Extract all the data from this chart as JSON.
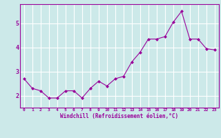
{
  "x": [
    0,
    1,
    2,
    3,
    4,
    5,
    6,
    7,
    8,
    9,
    10,
    11,
    12,
    13,
    14,
    15,
    16,
    17,
    18,
    19,
    20,
    21,
    22,
    23
  ],
  "y": [
    2.7,
    2.3,
    2.2,
    1.9,
    1.9,
    2.2,
    2.2,
    1.9,
    2.3,
    2.6,
    2.4,
    2.7,
    2.8,
    3.4,
    3.8,
    4.35,
    4.35,
    4.45,
    5.05,
    5.5,
    4.35,
    4.35,
    3.95,
    3.9
  ],
  "line_color": "#990099",
  "marker": "D",
  "marker_size": 2,
  "xlabel": "Windchill (Refroidissement éolien,°C)",
  "xlim": [
    -0.5,
    23.5
  ],
  "ylim": [
    1.5,
    5.8
  ],
  "yticks": [
    2,
    3,
    4,
    5
  ],
  "xticks": [
    0,
    1,
    2,
    3,
    4,
    5,
    6,
    7,
    8,
    9,
    10,
    11,
    12,
    13,
    14,
    15,
    16,
    17,
    18,
    19,
    20,
    21,
    22,
    23
  ],
  "background_color": "#cce9e9",
  "grid_color": "#ffffff",
  "tick_color": "#990099",
  "label_color": "#990099"
}
